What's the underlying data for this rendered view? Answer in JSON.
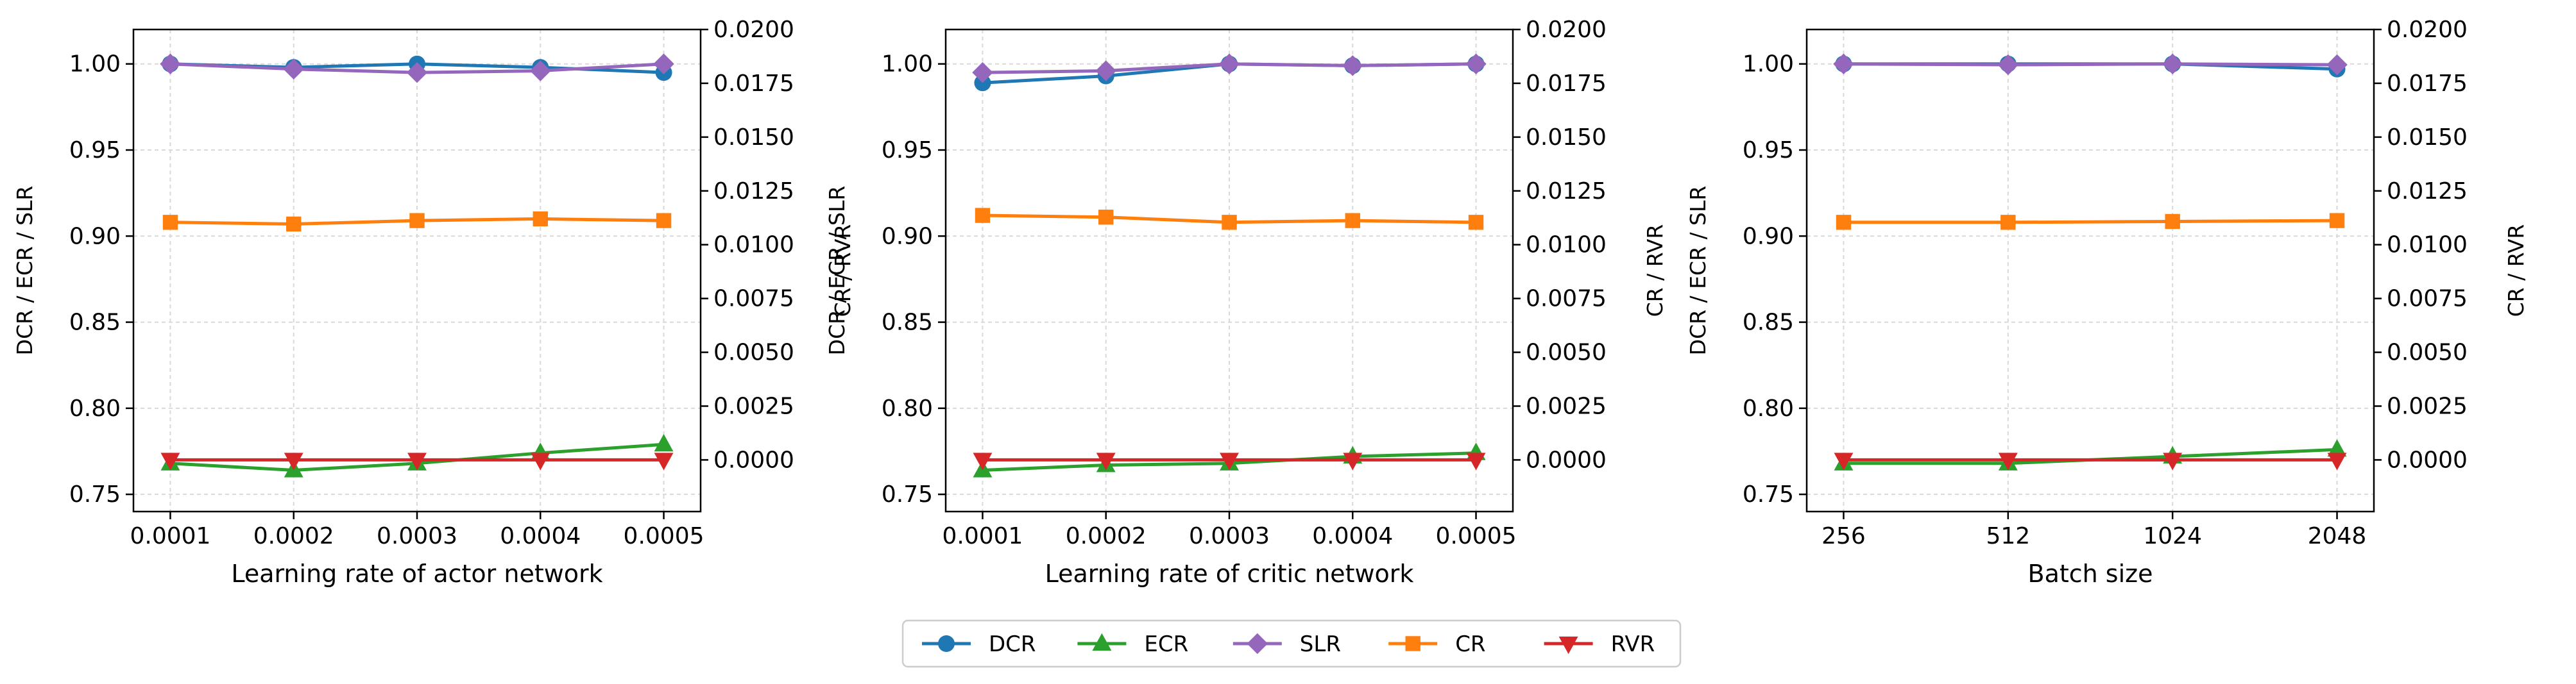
{
  "chart_data": [
    {
      "type": "line",
      "xlabel": "Learning rate of actor network",
      "ylabel_left": "DCR / ECR / SLR",
      "ylabel_right": "CR / RVR",
      "categories": [
        "0.0001",
        "0.0002",
        "0.0003",
        "0.0004",
        "0.0005"
      ],
      "ylim_left": [
        0.74,
        1.02
      ],
      "ylim_right": [
        -0.0024,
        0.02
      ],
      "yticks_left": [
        "0.75",
        "0.80",
        "0.85",
        "0.90",
        "0.95",
        "1.00"
      ],
      "yticks_right": [
        "0.0000",
        "0.0025",
        "0.0050",
        "0.0075",
        "0.0100",
        "0.0125",
        "0.0150",
        "0.0175",
        "0.0200"
      ],
      "grid": true,
      "series": [
        {
          "name": "DCR",
          "axis": "left",
          "values": [
            1.0,
            0.998,
            1.0,
            0.998,
            0.995
          ]
        },
        {
          "name": "ECR",
          "axis": "left",
          "values": [
            0.768,
            0.764,
            0.768,
            0.774,
            0.779
          ]
        },
        {
          "name": "SLR",
          "axis": "left",
          "values": [
            1.0,
            0.997,
            0.995,
            0.996,
            1.0
          ]
        },
        {
          "name": "CR",
          "axis": "left",
          "values": [
            0.908,
            0.907,
            0.909,
            0.91,
            0.909
          ]
        },
        {
          "name": "RVR",
          "axis": "right",
          "values": [
            0.0,
            0.0,
            0.0,
            0.0,
            0.0
          ]
        }
      ]
    },
    {
      "type": "line",
      "xlabel": "Learning rate of critic network",
      "ylabel_left": "DCR / ECR / SLR",
      "ylabel_right": "CR / RVR",
      "categories": [
        "0.0001",
        "0.0002",
        "0.0003",
        "0.0004",
        "0.0005"
      ],
      "ylim_left": [
        0.74,
        1.02
      ],
      "ylim_right": [
        -0.0024,
        0.02
      ],
      "yticks_left": [
        "0.75",
        "0.80",
        "0.85",
        "0.90",
        "0.95",
        "1.00"
      ],
      "yticks_right": [
        "0.0000",
        "0.0025",
        "0.0050",
        "0.0075",
        "0.0100",
        "0.0125",
        "0.0150",
        "0.0175",
        "0.0200"
      ],
      "grid": true,
      "series": [
        {
          "name": "DCR",
          "axis": "left",
          "values": [
            0.989,
            0.993,
            1.0,
            0.999,
            1.0
          ]
        },
        {
          "name": "ECR",
          "axis": "left",
          "values": [
            0.764,
            0.767,
            0.768,
            0.772,
            0.774
          ]
        },
        {
          "name": "SLR",
          "axis": "left",
          "values": [
            0.995,
            0.996,
            1.0,
            0.999,
            1.0
          ]
        },
        {
          "name": "CR",
          "axis": "left",
          "values": [
            0.912,
            0.911,
            0.908,
            0.909,
            0.908
          ]
        },
        {
          "name": "RVR",
          "axis": "right",
          "values": [
            0.0,
            0.0,
            0.0,
            0.0,
            0.0
          ]
        }
      ]
    },
    {
      "type": "line",
      "xlabel": "Batch size",
      "ylabel_left": "DCR / ECR / SLR",
      "ylabel_right": "CR / RVR",
      "categories": [
        "256",
        "512",
        "1024",
        "2048"
      ],
      "ylim_left": [
        0.74,
        1.02
      ],
      "ylim_right": [
        -0.0024,
        0.02
      ],
      "yticks_left": [
        "0.75",
        "0.80",
        "0.85",
        "0.90",
        "0.95",
        "1.00"
      ],
      "yticks_right": [
        "0.0000",
        "0.0025",
        "0.0050",
        "0.0075",
        "0.0100",
        "0.0125",
        "0.0150",
        "0.0175",
        "0.0200"
      ],
      "grid": true,
      "series": [
        {
          "name": "DCR",
          "axis": "left",
          "values": [
            1.0,
            1.0,
            1.0,
            0.997
          ]
        },
        {
          "name": "ECR",
          "axis": "left",
          "values": [
            0.768,
            0.768,
            0.772,
            0.776
          ]
        },
        {
          "name": "SLR",
          "axis": "left",
          "values": [
            1.0,
            0.9995,
            1.0,
            0.9995
          ]
        },
        {
          "name": "CR",
          "axis": "left",
          "values": [
            0.908,
            0.908,
            0.9085,
            0.909
          ]
        },
        {
          "name": "RVR",
          "axis": "right",
          "values": [
            0.0,
            0.0,
            0.0,
            0.0
          ]
        }
      ]
    }
  ],
  "legend": {
    "placement": "bottom-center",
    "entries": [
      {
        "name": "DCR",
        "marker": "circle"
      },
      {
        "name": "ECR",
        "marker": "triangle-up"
      },
      {
        "name": "SLR",
        "marker": "diamond"
      },
      {
        "name": "CR",
        "marker": "square"
      },
      {
        "name": "RVR",
        "marker": "triangle-down"
      }
    ]
  },
  "colors": {
    "DCR": "#1f77b4",
    "ECR": "#2ca02c",
    "SLR": "#9467bd",
    "CR": "#ff7f0e",
    "RVR": "#d62728",
    "grid": "#d9d9d9",
    "axis": "#000000"
  }
}
